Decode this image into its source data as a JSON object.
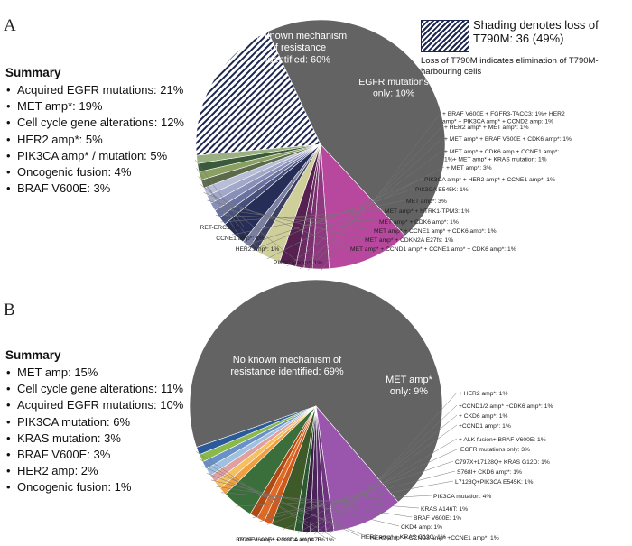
{
  "panel_a": {
    "letter": "A",
    "summary_title": "Summary",
    "summary_items": [
      "Acquired EGFR mutations: 21%",
      "MET amp*: 19%",
      "Cell cycle gene alterations: 12%",
      "HER2 amp*: 5%",
      "PIK3CA amp* / mutation: 5%",
      "Oncogenic fusion: 4%",
      "BRAF V600E: 3%"
    ],
    "legend_title": "Shading denotes loss of T790M: 36 (49%)",
    "legend_sub": "Loss of T790M indicates elimination of T790M-harbouring cells"
  },
  "panel_b": {
    "letter": "B",
    "summary_title": "Summary",
    "summary_items": [
      "MET amp: 15%",
      "Cell cycle gene alterations: 11%",
      "Acquired EGFR mutations: 10%",
      "PIK3CA mutation: 6%",
      "KRAS mutation: 3%",
      "BRAF V600E: 3%",
      "HER2 amp: 2%",
      "Oncogenic fusion: 1%"
    ]
  },
  "colors": {
    "gray": "#636363",
    "magenta": "#b8479e",
    "navy": "#262e58",
    "hatch": "#1c2650",
    "purple": "#9a56ad"
  },
  "chart_data": [
    {
      "type": "pie",
      "panel": "A",
      "title": "",
      "slices": [
        {
          "label": "No known mechanism of resistance identified: 60%",
          "value": 60,
          "color": "#636363",
          "inside": true,
          "hatched": "partial"
        },
        {
          "label": "EGFR mutations only: 10%",
          "value": 10,
          "color": "#b8479e",
          "inside": true
        },
        {
          "label": "+ BRAF V600E + FGFR3-TACC3: 1%+ HER2 amp* + PIK3CA amp* + CCND2 amp: 1%",
          "value": 2,
          "color": "#8f3a80"
        },
        {
          "label": "+ HER2 amp* + MET amp*: 1%",
          "value": 1,
          "color": "#7b3170"
        },
        {
          "label": "+ MET amp* + BRAF V600E + CDK6 amp*: 1%",
          "value": 1,
          "color": "#6a2a62"
        },
        {
          "label": "+ MET amp* + CDK6 amp + CCNE1 amp*: 1%+ MET amp* + KRAS mutation: 1%",
          "value": 2,
          "color": "#562050"
        },
        {
          "label": "+ MET amp*: 3%",
          "value": 3,
          "color": "#cfcf9a"
        },
        {
          "label": "PIK3CA amp* + HER2 amp* + CCNE1 amp*: 1%",
          "value": 1,
          "color": "#3c4060"
        },
        {
          "label": "PIK3CA E545K: 1%",
          "value": 1,
          "color": "#7a7ea0"
        },
        {
          "label": "MET amp*: 3%",
          "value": 3,
          "color": "#262e58"
        },
        {
          "label": "MET amp* + NTRK1-TPM3: 1%",
          "value": 1,
          "color": "#46507a"
        },
        {
          "label": "MET amp* + CDK6 amp*: 1%",
          "value": 1,
          "color": "#6a73a0"
        },
        {
          "label": "MET amp* + CCNE1 amp* + CDK6 amp*: 1%",
          "value": 1,
          "color": "#8890b8"
        },
        {
          "label": "MET amp* + CDKN2A E27fs: 1%",
          "value": 1,
          "color": "#a2a8c8"
        },
        {
          "label": "MET amp* + CCND1 amp* + CCNE1 amp* + CDK6 amp*: 1%",
          "value": 1,
          "color": "#b8bdd8"
        },
        {
          "label": "PIK3CA amp*: 1%",
          "value": 1,
          "color": "#5a6a4a"
        },
        {
          "label": "HER2 amp*: 1%",
          "value": 1,
          "color": "#8aa060"
        },
        {
          "label": "CCNE1 amp*: 1%",
          "value": 1,
          "color": "#3a5a3a"
        },
        {
          "label": "RET-ERC1: 1%",
          "value": 1,
          "color": "#9ab080"
        }
      ]
    },
    {
      "type": "pie",
      "panel": "B",
      "title": "",
      "slices": [
        {
          "label": "No known mechanism of resistance identified: 69%",
          "value": 69,
          "color": "#636363",
          "inside": true
        },
        {
          "label": "MET amp* only: 9%",
          "value": 9,
          "color": "#9a56ad",
          "inside": true
        },
        {
          "label": "+ HER2 amp*: 1%",
          "value": 1,
          "color": "#6f3680"
        },
        {
          "label": "+CCND1/2 amp* +CDK6 amp*: 1%",
          "value": 1,
          "color": "#5a2a6a"
        },
        {
          "label": "+ CKD6 amp*: 1%",
          "value": 1,
          "color": "#4a2458"
        },
        {
          "label": "+CCND1 amp*: 1%",
          "value": 1,
          "color": "#3c1e48"
        },
        {
          "label": "+ ALK fusion+ BRAF V600E: 1%",
          "value": 1,
          "color": "#2a5a30"
        },
        {
          "label": "EGFR mutations only: 3%",
          "value": 3,
          "color": "#3e5a28"
        },
        {
          "label": "C797X+L7128Q+ KRAS G12D: 1%",
          "value": 1,
          "color": "#cf5a1c"
        },
        {
          "label": "S768I+ CKD6 amp*: 1%",
          "value": 1,
          "color": "#e06a24"
        },
        {
          "label": "L7128Q+PIK3CA E545K: 1%",
          "value": 1,
          "color": "#b04a14"
        },
        {
          "label": "PIK3CA mutation: 4%",
          "value": 4,
          "color": "#3a6e3a"
        },
        {
          "label": "KRAS A146T: 1%",
          "value": 1,
          "color": "#f0a040"
        },
        {
          "label": "BRAF V600E: 1%",
          "value": 1,
          "color": "#f5c060"
        },
        {
          "label": "CKD4 amp: 1%",
          "value": 1,
          "color": "#e0a0a0"
        },
        {
          "label": "HER2 amp* + CCND3 amp* +CCNE1 amp*: 1%",
          "value": 1,
          "color": "#a0c0e0"
        },
        {
          "label": "HER2 amp* + KRAS G12C: 1%",
          "value": 1,
          "color": "#6a90c8"
        },
        {
          "label": "BRAF V600E+ PIK3CA H1047R: 1%",
          "value": 1,
          "color": "#8ab84a"
        },
        {
          "label": "CCNE1 amp* + CKD4 amp*: 1%",
          "value": 1,
          "color": "#2a5a9a"
        }
      ]
    }
  ]
}
